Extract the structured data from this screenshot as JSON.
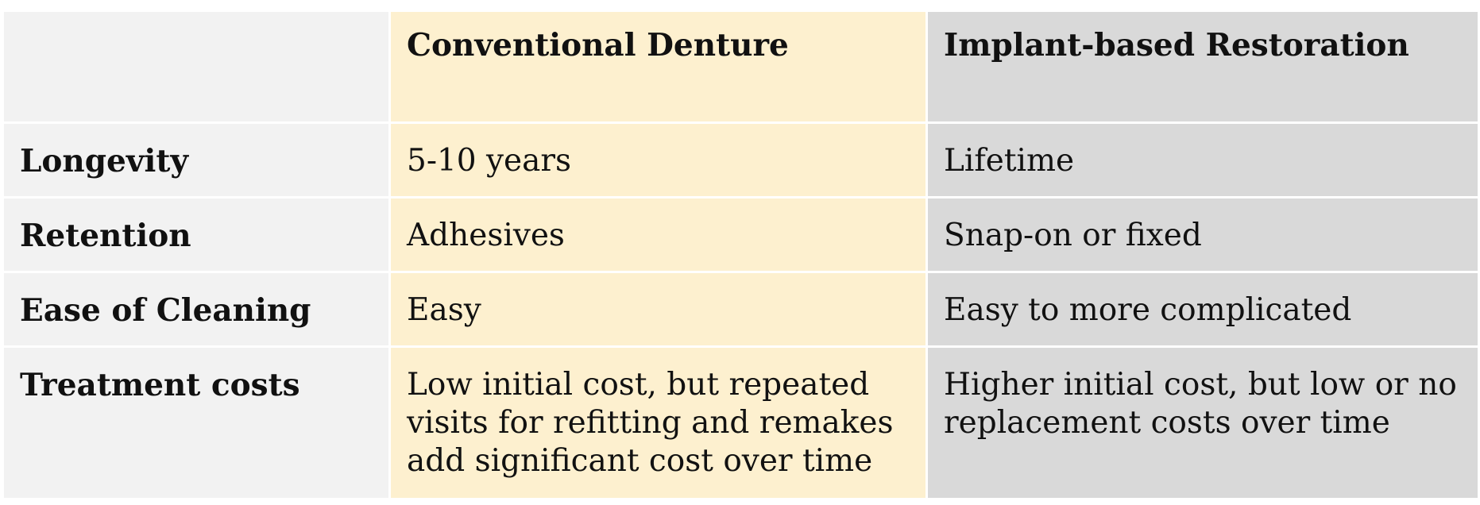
{
  "table": {
    "headers": {
      "corner": "",
      "conventional": "Conventional Denture",
      "implant": "Implant-based Restoration"
    },
    "rows": [
      {
        "label": "Longevity",
        "conventional": "5-10 years",
        "implant": "Lifetime"
      },
      {
        "label": "Retention",
        "conventional": "Adhesives",
        "implant": "Snap-on or fixed"
      },
      {
        "label": "Ease of Cleaning",
        "conventional": "Easy",
        "implant": "Easy to more complicated"
      },
      {
        "label": "Treatment costs",
        "conventional": "Low initial cost, but repeated visits for refitting and remakes add significant cost over time",
        "implant": "Higher initial cost, but low or no replacement costs over time"
      }
    ]
  },
  "colors": {
    "label_column": "#f2f2f2",
    "conventional_column": "#fdf0cf",
    "implant_column": "#d9d9d9",
    "text": "#111111"
  }
}
